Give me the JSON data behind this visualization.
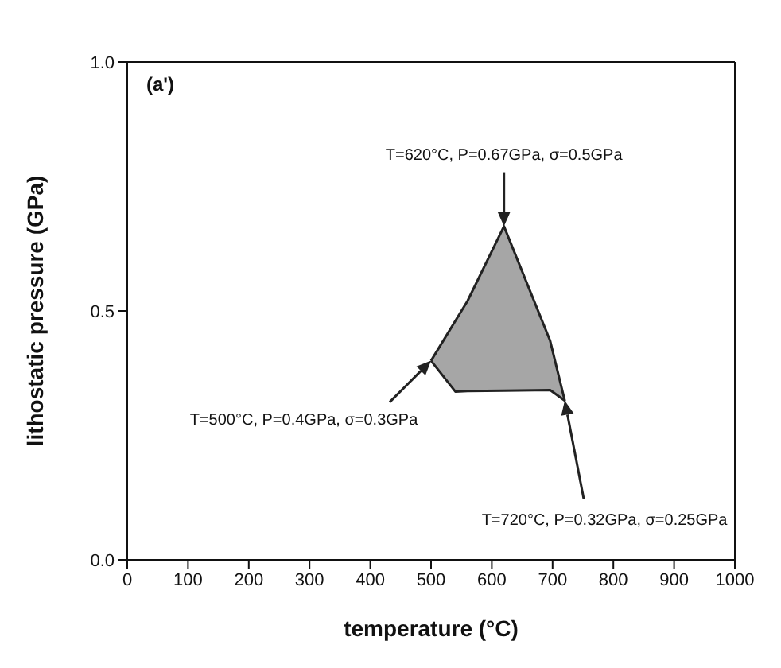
{
  "chart_data": {
    "type": "area",
    "xlabel": "temperature (°C)",
    "ylabel": "lithostatic pressure (GPa)",
    "annotations": [
      "(a')",
      "T=620°C, P=0.67GPa, σ=0.5GPa",
      "T=500°C, P=0.4GPa, σ=0.3GPa",
      "T=720°C, P=0.32GPa, σ=0.25GPa"
    ],
    "x": [
      500,
      540,
      560,
      620,
      696,
      720,
      696,
      620,
      560,
      540,
      500
    ],
    "series": [
      {
        "color": "#a6a6a6",
        "values": [
          0.4,
          0.48,
          0.52,
          0.67,
          0.44,
          0.32,
          0.341,
          0.34,
          0.339,
          0.338,
          0.4
        ]
      }
    ],
    "xlim": [
      0,
      1000
    ],
    "xticks": [
      0,
      100,
      200,
      300,
      400,
      500,
      600,
      700,
      800,
      900,
      1000
    ],
    "ylim": [
      0,
      1
    ],
    "yticks": [
      {
        "value": 0,
        "label": "0.0"
      },
      {
        "value": 0.5,
        "label": "0.5"
      },
      {
        "value": 1,
        "label": "1.0"
      }
    ],
    "grid": false,
    "legend": false
  }
}
